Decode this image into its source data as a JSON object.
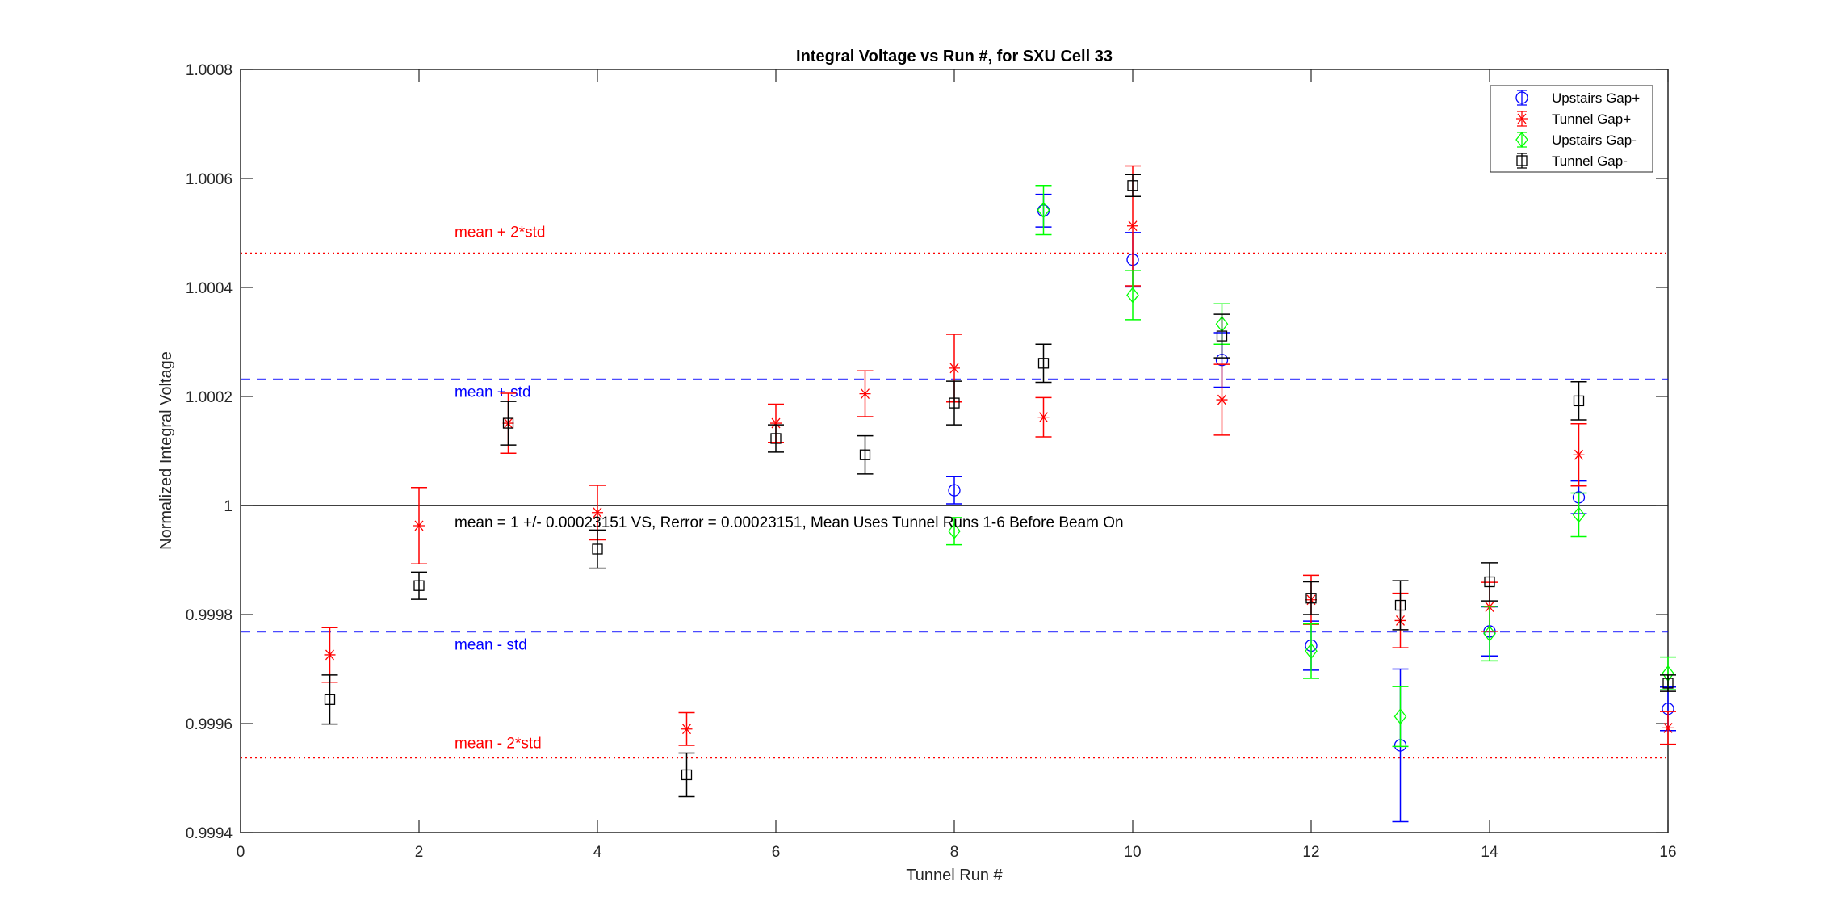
{
  "chart_data": {
    "type": "scatter",
    "title": "Integral Voltage vs Run #, for SXU Cell 33",
    "xlabel": "Tunnel Run #",
    "ylabel": "Normalized Integral Voltage",
    "xlim": [
      0,
      16
    ],
    "ylim": [
      0.9994,
      1.0008
    ],
    "xticks": [
      0,
      2,
      4,
      6,
      8,
      10,
      12,
      14,
      16
    ],
    "xtick_labels": [
      "0",
      "2",
      "4",
      "6",
      "8",
      "10",
      "12",
      "14",
      "16"
    ],
    "yticks": [
      0.9994,
      0.9996,
      0.9998,
      1.0,
      1.0002,
      1.0004,
      1.0006,
      1.0008
    ],
    "ytick_labels": [
      "0.9994",
      "0.9996",
      "0.9998",
      "1",
      "1.0002",
      "1.0004",
      "1.0006",
      "1.0008"
    ],
    "legend_position": "top-right",
    "series": [
      {
        "name": "Upstairs Gap+",
        "color": "#0000ff",
        "marker": "circle",
        "x": [
          8,
          9,
          10,
          11,
          12,
          13,
          14,
          15,
          16
        ],
        "y": [
          1.000028,
          1.000541,
          1.000451,
          1.000267,
          0.999743,
          0.99956,
          0.999769,
          1.000015,
          0.999627
        ],
        "err": [
          2.5e-05,
          3e-05,
          5e-05,
          5e-05,
          4.5e-05,
          0.00014,
          4.5e-05,
          3e-05,
          4e-05
        ]
      },
      {
        "name": "Tunnel Gap+",
        "color": "#ff0000",
        "marker": "asterisk",
        "x": [
          1,
          2,
          3,
          4,
          5,
          6,
          7,
          8,
          9,
          10,
          11,
          12,
          13,
          14,
          15,
          16
        ],
        "y": [
          0.999726,
          0.999963,
          1.000151,
          0.999987,
          0.99959,
          1.000151,
          1.000205,
          1.000252,
          1.000162,
          1.000513,
          1.000194,
          0.999827,
          0.999789,
          0.999814,
          1.000093,
          0.999592
        ],
        "err": [
          5e-05,
          7e-05,
          5.5e-05,
          5e-05,
          3e-05,
          3.5e-05,
          4.2e-05,
          6.2e-05,
          3.6e-05,
          0.00011,
          6.5e-05,
          4.5e-05,
          5e-05,
          4.5e-05,
          5.7e-05,
          3e-05
        ]
      },
      {
        "name": "Upstairs Gap-",
        "color": "#00ff00",
        "marker": "diamond",
        "x": [
          8,
          9,
          10,
          11,
          12,
          13,
          14,
          15,
          16
        ],
        "y": [
          0.999953,
          1.000542,
          1.000386,
          1.000333,
          0.999733,
          0.999613,
          0.999765,
          0.999983,
          0.999692
        ],
        "err": [
          2.5e-05,
          4.5e-05,
          4.5e-05,
          3.7e-05,
          5e-05,
          5.5e-05,
          5e-05,
          4e-05,
          3e-05
        ]
      },
      {
        "name": "Tunnel Gap-",
        "color": "#000000",
        "marker": "square",
        "x": [
          1,
          2,
          3,
          4,
          5,
          6,
          7,
          8,
          9,
          10,
          11,
          12,
          13,
          14,
          15,
          16
        ],
        "y": [
          0.999644,
          0.999853,
          1.000151,
          0.99992,
          0.999506,
          1.000123,
          1.000093,
          1.000188,
          1.000261,
          1.000587,
          1.000311,
          0.99983,
          0.999817,
          0.99986,
          1.000192,
          0.999674
        ],
        "err": [
          4.5e-05,
          2.5e-05,
          4e-05,
          3.5e-05,
          4e-05,
          2.5e-05,
          3.5e-05,
          4e-05,
          3.5e-05,
          2e-05,
          4e-05,
          3e-05,
          4.5e-05,
          3.5e-05,
          3.5e-05,
          1.5e-05
        ]
      }
    ],
    "reference_lines": [
      {
        "label": "mean + 2*std",
        "y": 1.00046302,
        "color": "#ff0000",
        "style": "dotted"
      },
      {
        "label": "mean + std",
        "y": 1.00023151,
        "color": "#0000ff",
        "style": "dashed"
      },
      {
        "label": "",
        "y": 1.0,
        "color": "#000000",
        "style": "solid"
      },
      {
        "label": "mean - std",
        "y": 0.99976849,
        "color": "#0000ff",
        "style": "dashed"
      },
      {
        "label": "mean - 2*std",
        "y": 0.99953698,
        "color": "#ff0000",
        "style": "dotted"
      }
    ],
    "annotation": "mean = 1 +/- 0.00023151 VS, Rerror = 0.00023151, Mean Uses Tunnel Runs 1-6 Before Beam On"
  }
}
